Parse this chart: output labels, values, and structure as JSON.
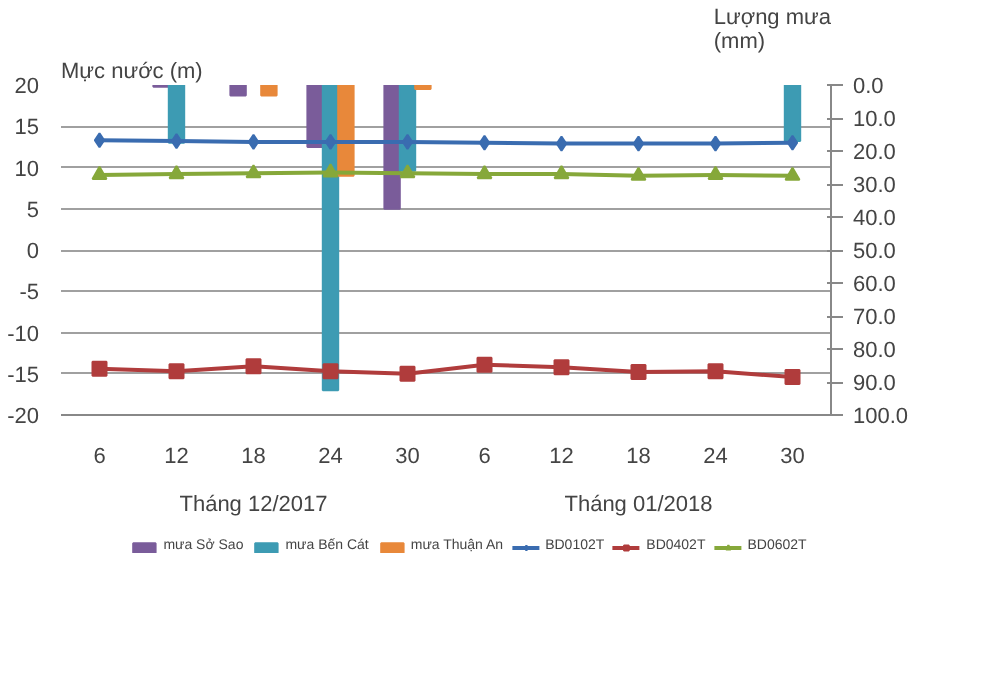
{
  "chart_data": {
    "type": "line",
    "categories": [
      "6",
      "12",
      "18",
      "24",
      "30",
      "6",
      "12",
      "18",
      "24",
      "30"
    ],
    "ylabel": "Mực nước (m)",
    "y2label": "Lượng mưa\n(mm)",
    "ylim": [
      -20,
      20
    ],
    "yticks": [
      -20,
      -15,
      -10,
      -5,
      0,
      5,
      10,
      15,
      20
    ],
    "y2lim": [
      100,
      0
    ],
    "y2ticks": [
      {
        "value": 0,
        "label": "0.0"
      },
      {
        "value": 10,
        "label": "10.0"
      },
      {
        "value": 20,
        "label": "20.0"
      },
      {
        "value": 30,
        "label": "30.0"
      },
      {
        "value": 40,
        "label": "40.0"
      },
      {
        "value": 50,
        "label": "50.0"
      },
      {
        "value": 60,
        "label": "60.0"
      },
      {
        "value": 70,
        "label": "70.0"
      },
      {
        "value": 80,
        "label": "80.0"
      },
      {
        "value": 90,
        "label": "90.0"
      },
      {
        "value": 100,
        "label": "100.0"
      }
    ],
    "grid": "y",
    "legend": "bottom",
    "annotations": [
      "Tháng 12/2017",
      "Tháng 01/2018"
    ],
    "series": [
      {
        "name": "mưa Sở Sao",
        "type": "bar",
        "axis": "y2",
        "color": "#7a5c9a",
        "values": [
          null,
          0.5,
          3.2,
          18.8,
          37.5,
          null,
          null,
          null,
          null,
          null
        ]
      },
      {
        "name": "mưa Bến Cát",
        "type": "bar",
        "axis": "y2",
        "color": "#3d9bb3",
        "values": [
          null,
          17.5,
          null,
          92.5,
          26,
          null,
          null,
          null,
          null,
          17
        ]
      },
      {
        "name": "mưa Thuận An",
        "type": "bar",
        "axis": "y2",
        "color": "#e8883a",
        "values": [
          null,
          null,
          3.2,
          27.5,
          1.2,
          null,
          null,
          null,
          null,
          null
        ]
      },
      {
        "name": "BD0102T",
        "marker": "diamond",
        "color": "#3a6cb0",
        "values": [
          13.3,
          13.2,
          13.1,
          13.1,
          13.1,
          13.0,
          12.9,
          12.9,
          12.9,
          13.0
        ]
      },
      {
        "name": "BD0402T",
        "marker": "square",
        "color": "#b03c3c",
        "values": [
          -14.4,
          -14.7,
          -14.1,
          -14.7,
          -15.0,
          -13.9,
          -14.2,
          -14.8,
          -14.7,
          -15.4
        ]
      },
      {
        "name": "BD0602T",
        "marker": "triangle",
        "color": "#86a83a",
        "values": [
          9.1,
          9.2,
          9.3,
          9.4,
          9.3,
          9.2,
          9.2,
          9.0,
          9.1,
          9.0
        ]
      }
    ]
  }
}
